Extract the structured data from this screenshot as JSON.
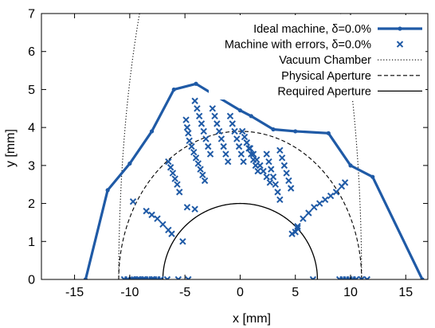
{
  "chart_data": {
    "type": "scatter",
    "xlabel": "x [mm]",
    "ylabel": "y [mm]",
    "xlim": [
      -18,
      17
    ],
    "ylim": [
      0,
      7
    ],
    "xticks": [
      -15,
      -10,
      -5,
      0,
      5,
      10,
      15
    ],
    "yticks": [
      0,
      1,
      2,
      3,
      4,
      5,
      6,
      7
    ],
    "grid": false,
    "legend_position": "top-right",
    "colors": {
      "blue": "#1f5aa6",
      "black": "#000000"
    },
    "series": [
      {
        "name": "Ideal machine, δ=0.0%",
        "style": "line-points",
        "color": "#1f5aa6",
        "x": [
          -14,
          -12,
          -10,
          -8,
          -6,
          -4,
          -2,
          0,
          1,
          3,
          5,
          8,
          10,
          12,
          16.5
        ],
        "y": [
          0,
          2.35,
          3.05,
          3.9,
          5.0,
          5.15,
          4.8,
          4.45,
          4.3,
          3.95,
          3.9,
          3.85,
          3.0,
          2.7,
          0
        ]
      },
      {
        "name": "Machine with errors, δ=0.0%",
        "style": "crosses",
        "color": "#1f5aa6",
        "x": [
          -10.5,
          -10.2,
          -9.8,
          -9.6,
          -9.3,
          -9.1,
          -8.8,
          -8.6,
          -8.3,
          -8.0,
          -7.8,
          -7.5,
          -7.2,
          -6.6,
          -4.7,
          -5.6,
          6.6,
          9.0,
          9.3,
          9.6,
          9.9,
          10.2,
          10.5,
          11.0,
          11.5,
          -9.7,
          -8.5,
          -8.0,
          -7.5,
          -7.0,
          -6.5,
          -6.2,
          -5.2,
          -4.8,
          -4.1,
          -6.5,
          -6.3,
          -6.1,
          -5.9,
          -5.7,
          -5.5,
          -4.9,
          -4.8,
          -4.7,
          -4.6,
          -4.4,
          -4.2,
          -4.0,
          -3.8,
          -3.6,
          -3.4,
          -3.2,
          -4.1,
          -3.9,
          -3.7,
          -3.5,
          -3.3,
          -3.1,
          -2.9,
          -2.7,
          -2.5,
          -2.3,
          -2.1,
          -1.9,
          -1.7,
          -1.5,
          -1.3,
          -1.1,
          -0.9,
          -0.7,
          -0.5,
          -0.3,
          -0.1,
          0.1,
          0.3,
          0.2,
          0.4,
          0.6,
          0.8,
          1.0,
          1.2,
          1.4,
          1.6,
          0.6,
          0.9,
          1.2,
          1.5,
          1.8,
          2.1,
          2.4,
          2.7,
          2.4,
          2.6,
          2.8,
          3.0,
          3.2,
          3.4,
          3.6,
          3.6,
          3.8,
          4.0,
          4.2,
          4.4,
          4.6,
          5.2,
          5.0,
          4.7,
          5.2,
          5.7,
          6.2,
          6.7,
          7.2,
          7.7,
          8.2,
          8.7,
          9.2,
          9.5
        ],
        "y": [
          0,
          0,
          0,
          0,
          0,
          0,
          0,
          0,
          0,
          0,
          0,
          0,
          0,
          0,
          0,
          0,
          0,
          0,
          0,
          0,
          0,
          0,
          0,
          0,
          0,
          2.05,
          1.8,
          1.7,
          1.6,
          1.45,
          1.3,
          1.2,
          1.0,
          1.9,
          1.85,
          3.1,
          2.95,
          2.8,
          2.65,
          2.5,
          2.3,
          4.2,
          4.0,
          3.85,
          3.65,
          3.5,
          3.35,
          3.2,
          3.05,
          2.9,
          2.75,
          2.6,
          4.7,
          4.5,
          4.3,
          4.1,
          3.9,
          3.7,
          3.5,
          3.3,
          4.5,
          4.3,
          4.1,
          3.9,
          3.7,
          3.5,
          3.3,
          3.1,
          4.3,
          4.1,
          3.9,
          3.7,
          3.5,
          3.3,
          3.1,
          3.9,
          3.75,
          3.6,
          3.45,
          3.3,
          3.15,
          3.0,
          2.85,
          3.6,
          3.45,
          3.3,
          3.15,
          3.0,
          2.85,
          2.7,
          2.55,
          3.3,
          3.1,
          2.9,
          2.7,
          2.5,
          2.3,
          2.1,
          3.4,
          3.2,
          3.0,
          2.8,
          2.6,
          2.4,
          1.35,
          1.25,
          1.2,
          1.4,
          1.6,
          1.75,
          1.9,
          2.0,
          2.1,
          2.2,
          2.3,
          2.45,
          2.55
        ]
      },
      {
        "name": "Vacuum Chamber",
        "style": "dotted",
        "color": "#000000",
        "kind": "ellipse",
        "a": 11,
        "b": 12.5
      },
      {
        "name": "Physical Aperture",
        "style": "dashed",
        "color": "#000000",
        "kind": "ellipse",
        "a": 11,
        "b": 3.9
      },
      {
        "name": "Required Aperture",
        "style": "solid",
        "color": "#000000",
        "kind": "ellipse",
        "a": 7,
        "b": 2.0
      }
    ]
  }
}
